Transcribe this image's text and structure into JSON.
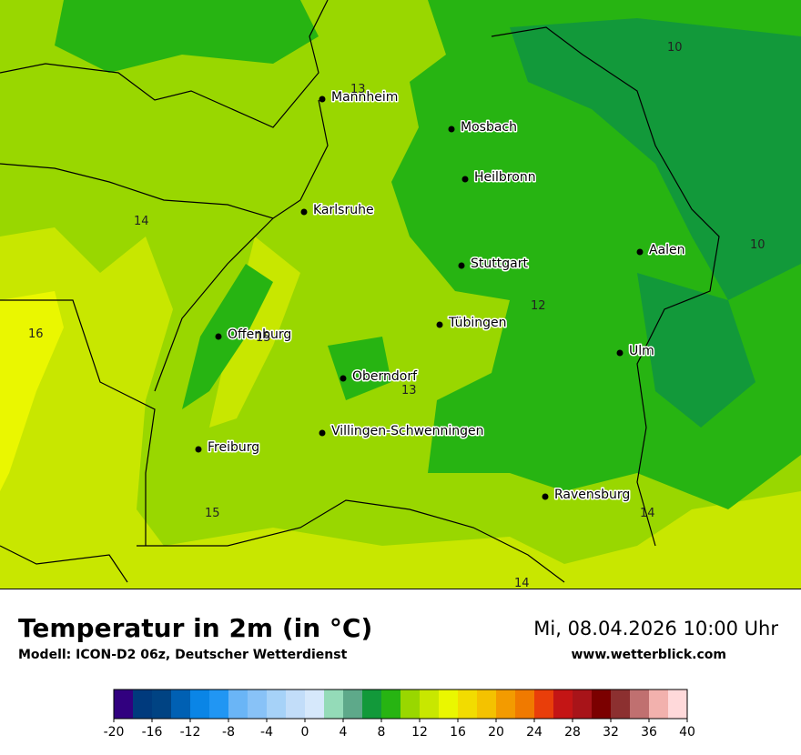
{
  "map": {
    "cities": [
      "Mannheim",
      "Mosbach",
      "Heilbronn",
      "Karlsruhe",
      "Stuttgart",
      "Aalen",
      "Tübingen",
      "Ulm",
      "Offenburg",
      "Oberndorf",
      "Villingen-Schwenningen",
      "Freiburg",
      "Ravensburg"
    ],
    "isoline_labels": [
      "10",
      "13",
      "10",
      "14",
      "12",
      "16",
      "15",
      "13",
      "15",
      "14",
      "14"
    ]
  },
  "legend": {
    "title": "Temperatur in 2m (in °C)",
    "model": "Modell: ICON-D2 06z, Deutscher Wetterdienst",
    "datetime": "Mi, 08.04.2026 10:00 Uhr",
    "website": "www.wetterblick.com"
  },
  "colorbar": {
    "bounds": [
      -20,
      -18,
      -16,
      -14,
      -12,
      -10,
      -8,
      -6,
      -4,
      -2,
      0,
      2,
      4,
      6,
      8,
      10,
      12,
      14,
      16,
      18,
      20,
      22,
      24,
      26,
      28,
      30,
      32,
      34,
      36,
      38,
      40
    ],
    "colors": [
      "#31007f",
      "#003a7d",
      "#004383",
      "#0060b3",
      "#0a85e6",
      "#2196f3",
      "#6ab5f6",
      "#88c2f7",
      "#a6d2f8",
      "#c2ddf9",
      "#d6e8fb",
      "#94dbb8",
      "#5ea98a",
      "#12993a",
      "#27b412",
      "#99d700",
      "#c8e700",
      "#eaf700",
      "#f2dc00",
      "#f4c200",
      "#f39b00",
      "#f07a00",
      "#e93e0a",
      "#c41515",
      "#a81419",
      "#7b0000",
      "#8c3030",
      "#c07070",
      "#f2b1ad",
      "#ffd9da"
    ],
    "ticks": [
      -20,
      -16,
      -12,
      -8,
      -4,
      0,
      4,
      8,
      12,
      16,
      20,
      24,
      28,
      32,
      36,
      40
    ]
  }
}
